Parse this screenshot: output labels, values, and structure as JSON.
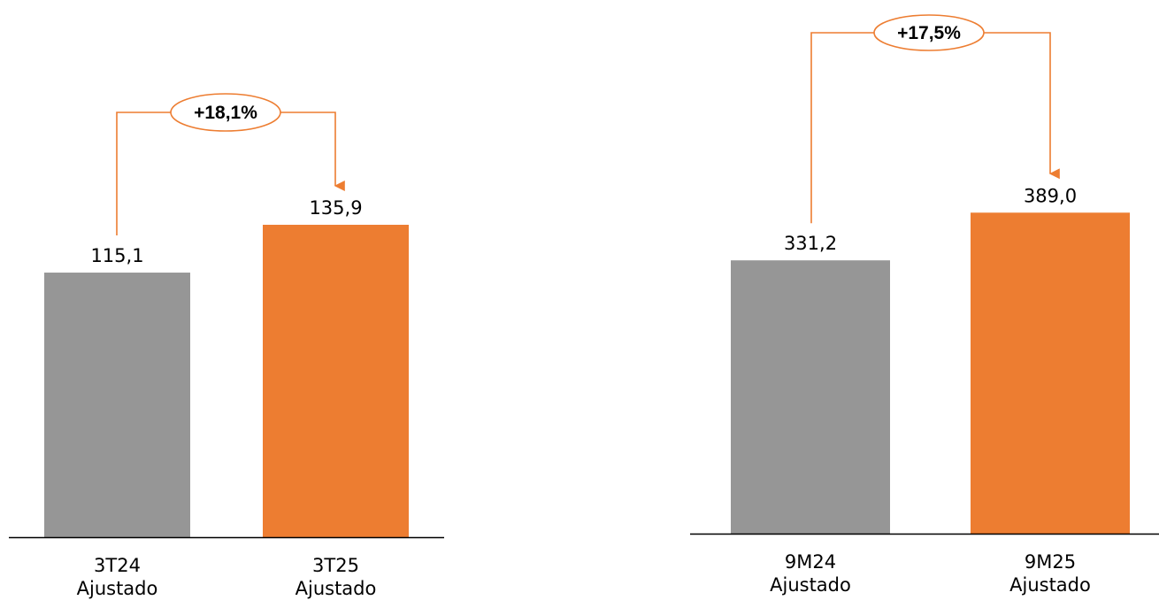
{
  "chart_data": [
    {
      "type": "bar",
      "categories": [
        "3T24 Ajustado",
        "3T25 Ajustado"
      ],
      "category_lines": [
        [
          "3T24",
          "Ajustado"
        ],
        [
          "3T25",
          "Ajustado"
        ]
      ],
      "values": [
        115.1,
        135.9
      ],
      "value_labels": [
        "115,1",
        "135,9"
      ],
      "bar_colors": [
        "#969696",
        "#ED7D31"
      ],
      "growth_label": "+18,1%",
      "ylim": [
        0,
        154
      ],
      "grid": false,
      "axis_line": true
    },
    {
      "type": "bar",
      "categories": [
        "9M24 Ajustado",
        "9M25 Ajustado"
      ],
      "category_lines": [
        [
          "9M24",
          "Ajustado"
        ],
        [
          "9M25",
          "Ajustado"
        ]
      ],
      "values": [
        331.2,
        389.0
      ],
      "value_labels": [
        "331,2",
        "389,0"
      ],
      "bar_colors": [
        "#969696",
        "#ED7D31"
      ],
      "growth_label": "+17,5%",
      "ylim": [
        0,
        429
      ],
      "grid": false,
      "axis_line": true
    }
  ],
  "colors": {
    "accent": "#ED7D31",
    "baseline": "#969696",
    "connector": "#ED7D31",
    "axis": "#000000"
  }
}
